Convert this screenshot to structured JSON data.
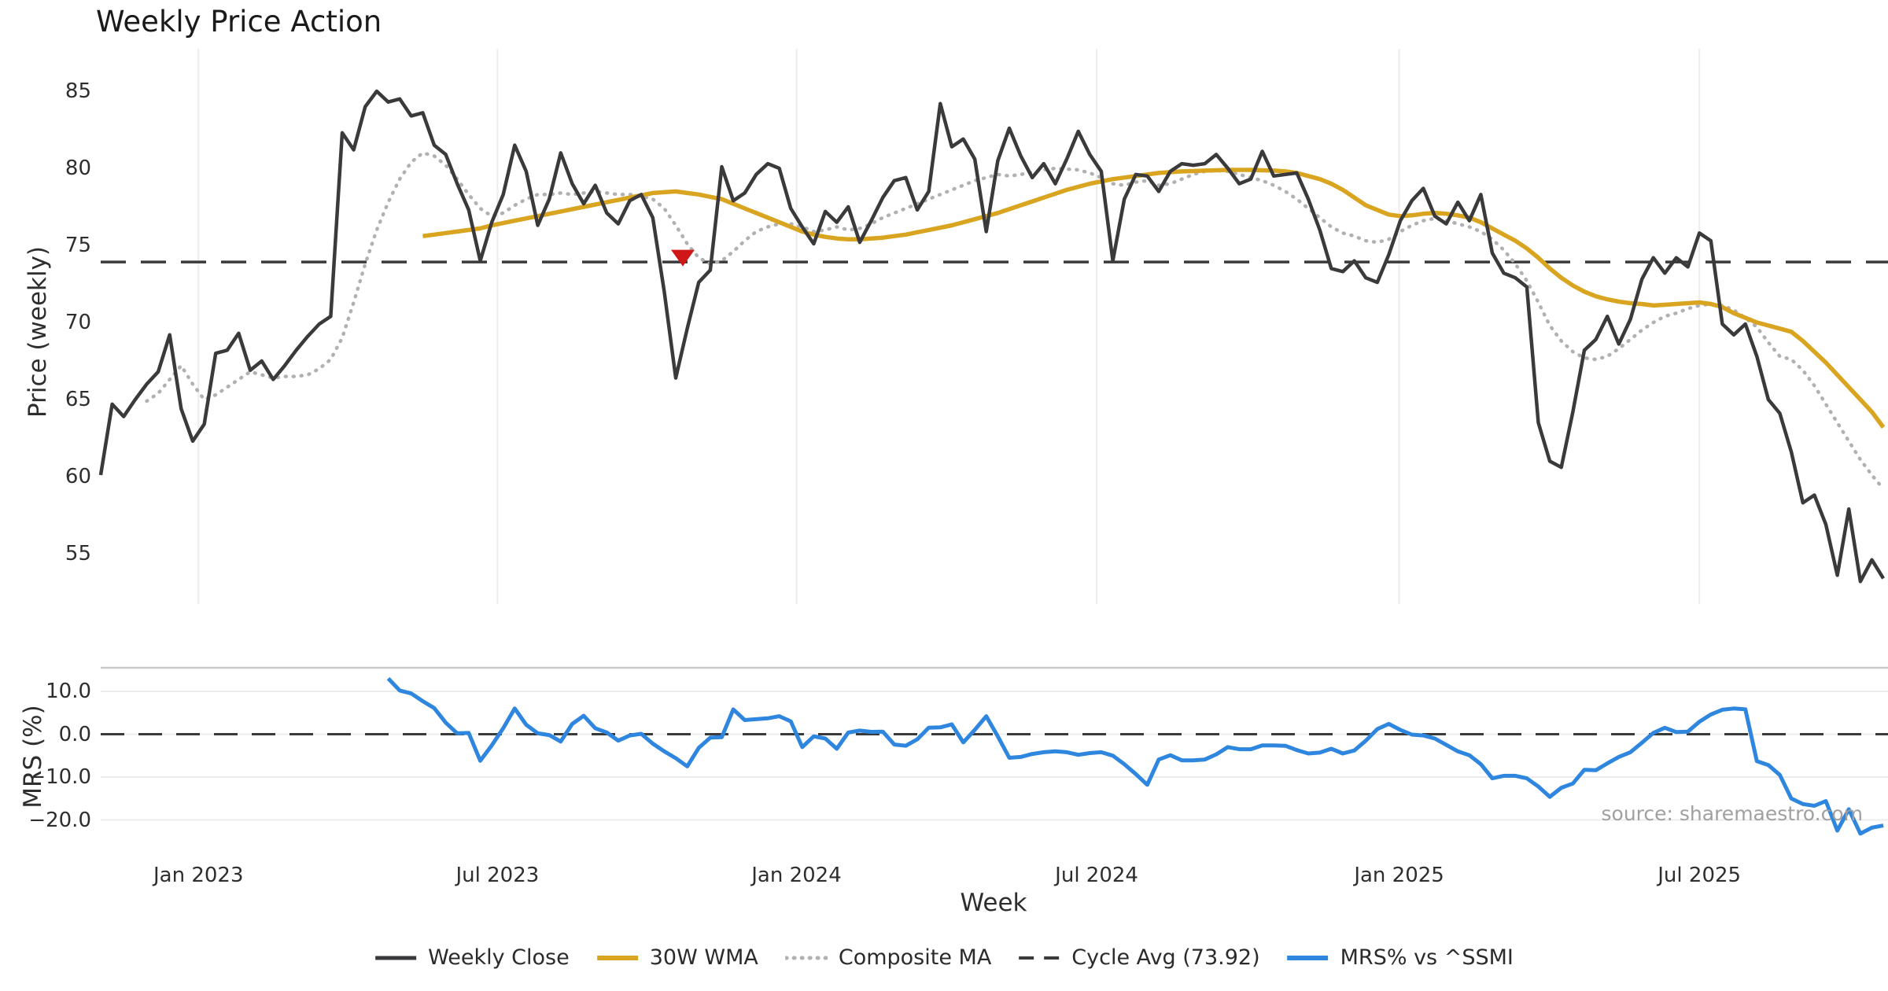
{
  "title": "Weekly Price Action",
  "source_note": "source: sharemaestro.com",
  "axes": {
    "xlabel": "Week",
    "price_ylabel": "Price (weekly)",
    "mrs_ylabel": "MRS (%)"
  },
  "colors": {
    "weekly_close": "#3a3a3c",
    "wma_30w": "#d9a521",
    "composite_ma": "#b1b1b3",
    "cycle_avg": "#3a3a3a",
    "mrs": "#2e86de",
    "marker": "#d01717",
    "grid": "#ececec",
    "spine": "#c9c9c9",
    "text": "#2e2e2e",
    "muted": "#a0a0a0"
  },
  "legend": {
    "items": [
      {
        "id": "weekly-close",
        "label": "Weekly Close",
        "swatch": "solid",
        "color": "#3a3a3c",
        "weight": 5
      },
      {
        "id": "wma-30w",
        "label": "30W WMA",
        "swatch": "solid",
        "color": "#d9a521",
        "weight": 6
      },
      {
        "id": "composite-ma",
        "label": "Composite MA",
        "swatch": "dotted",
        "color": "#b1b1b3",
        "weight": 5
      },
      {
        "id": "cycle-avg",
        "label": "Cycle Avg (73.92)",
        "swatch": "dashes",
        "color": "#3a3a3a",
        "weight": 4
      },
      {
        "id": "mrs",
        "label": "MRS% vs ^SSMI",
        "swatch": "solid",
        "color": "#2e86de",
        "weight": 6
      }
    ]
  },
  "chart_data": [
    {
      "id": "price",
      "type": "line",
      "title": "Weekly Price Action",
      "ylabel": "Price (weekly)",
      "xlabel": "Week",
      "ylim": [
        51.7,
        87.8
      ],
      "grid": "vertical-only",
      "yticks": [
        {
          "label": "85",
          "value": 85
        },
        {
          "label": "80",
          "value": 80
        },
        {
          "label": "75",
          "value": 75
        },
        {
          "label": "70",
          "value": 70
        },
        {
          "label": "65",
          "value": 65
        },
        {
          "label": "60",
          "value": 60
        },
        {
          "label": "55",
          "value": 55
        }
      ],
      "xticks": [
        {
          "label": "Jan 2023",
          "week": 8.5
        },
        {
          "label": "Jul 2023",
          "week": 34.5
        },
        {
          "label": "Jan 2024",
          "week": 60.5
        },
        {
          "label": "Jul 2024",
          "week": 86.6
        },
        {
          "label": "Jan 2025",
          "week": 112.9
        },
        {
          "label": "Jul 2025",
          "week": 139.0
        }
      ],
      "reference_line": {
        "name": "Cycle Avg",
        "value": 73.92
      },
      "marker": {
        "type": "triangle-down",
        "week": 50,
        "value": 74.2
      },
      "series": [
        {
          "name": "Weekly Close",
          "key": "weekly_close",
          "start_week": 0,
          "values": [
            60.1,
            64.7,
            63.9,
            65.0,
            66.0,
            66.8,
            69.2,
            64.4,
            62.3,
            63.4,
            68.0,
            68.2,
            69.3,
            66.9,
            67.5,
            66.3,
            67.2,
            68.2,
            69.1,
            69.9,
            70.4,
            82.3,
            81.2,
            84.0,
            85.0,
            84.3,
            84.5,
            83.4,
            83.6,
            81.5,
            80.9,
            79.0,
            77.3,
            74.0,
            76.5,
            78.3,
            81.5,
            79.8,
            76.3,
            78.0,
            81.0,
            79.0,
            77.7,
            78.9,
            77.1,
            76.4,
            77.9,
            78.3,
            76.8,
            72.0,
            66.4,
            69.6,
            72.6,
            73.4,
            80.1,
            77.9,
            78.4,
            79.6,
            80.3,
            80.0,
            77.4,
            76.2,
            75.1,
            77.2,
            76.5,
            77.5,
            75.2,
            76.6,
            78.1,
            79.2,
            79.4,
            77.3,
            78.5,
            84.2,
            81.4,
            81.9,
            80.6,
            75.9,
            80.5,
            82.6,
            80.8,
            79.4,
            80.3,
            79.0,
            80.6,
            82.4,
            80.9,
            79.8,
            74.0,
            78.0,
            79.6,
            79.5,
            78.5,
            79.8,
            80.3,
            80.2,
            80.3,
            80.9,
            80.0,
            79.0,
            79.3,
            81.1,
            79.5,
            79.6,
            79.7,
            78.0,
            76.0,
            73.5,
            73.3,
            74.0,
            72.9,
            72.6,
            74.4,
            76.6,
            77.9,
            78.7,
            76.9,
            76.4,
            77.8,
            76.6,
            78.3,
            74.5,
            73.2,
            72.9,
            72.3,
            63.5,
            61.0,
            60.6,
            64.2,
            68.2,
            68.9,
            70.4,
            68.6,
            70.2,
            72.8,
            74.2,
            73.2,
            74.2,
            73.6,
            75.8,
            75.3,
            69.9,
            69.2,
            69.9,
            67.8,
            65.0,
            64.1,
            61.6,
            58.3,
            58.8,
            56.9,
            53.6,
            57.9,
            53.2,
            54.6,
            53.4
          ]
        },
        {
          "name": "30W WMA",
          "key": "wma_30w",
          "start_week": 28,
          "values": [
            75.6,
            75.7,
            75.8,
            75.9,
            76.0,
            76.1,
            76.3,
            76.45,
            76.6,
            76.75,
            76.9,
            77.05,
            77.2,
            77.35,
            77.5,
            77.65,
            77.8,
            77.95,
            78.1,
            78.25,
            78.4,
            78.45,
            78.5,
            78.4,
            78.3,
            78.15,
            78.0,
            77.7,
            77.4,
            77.1,
            76.8,
            76.5,
            76.2,
            75.9,
            75.7,
            75.55,
            75.45,
            75.4,
            75.4,
            75.45,
            75.5,
            75.6,
            75.7,
            75.85,
            76.0,
            76.15,
            76.3,
            76.5,
            76.7,
            76.9,
            77.1,
            77.35,
            77.6,
            77.85,
            78.1,
            78.35,
            78.6,
            78.8,
            79.0,
            79.15,
            79.3,
            79.4,
            79.5,
            79.6,
            79.7,
            79.75,
            79.8,
            79.82,
            79.85,
            79.87,
            79.9,
            79.9,
            79.9,
            79.87,
            79.85,
            79.8,
            79.7,
            79.5,
            79.3,
            79.0,
            78.6,
            78.1,
            77.6,
            77.3,
            77.0,
            76.9,
            76.95,
            77.05,
            77.1,
            77.05,
            76.95,
            76.8,
            76.5,
            76.1,
            75.7,
            75.3,
            74.8,
            74.2,
            73.5,
            72.9,
            72.4,
            72.0,
            71.7,
            71.5,
            71.35,
            71.25,
            71.2,
            71.1,
            71.15,
            71.2,
            71.25,
            71.3,
            71.2,
            71.0,
            70.6,
            70.3,
            70.0,
            69.8,
            69.6,
            69.4,
            68.8,
            68.1,
            67.4,
            66.6,
            65.8,
            65.0,
            64.2,
            63.2
          ]
        },
        {
          "name": "Composite MA",
          "key": "composite_ma",
          "start_week": 4,
          "values": [
            64.9,
            65.4,
            66.3,
            67.2,
            66.0,
            65.0,
            65.3,
            65.8,
            66.3,
            66.8,
            66.6,
            66.4,
            66.5,
            66.5,
            66.6,
            67.0,
            67.6,
            69.0,
            71.3,
            73.8,
            76.0,
            77.8,
            79.3,
            80.4,
            81.0,
            80.8,
            80.2,
            79.3,
            78.3,
            77.4,
            76.9,
            77.1,
            77.6,
            78.0,
            78.3,
            78.3,
            78.4,
            78.3,
            78.4,
            78.5,
            78.4,
            78.3,
            78.3,
            78.2,
            78.0,
            77.4,
            76.3,
            75.1,
            74.2,
            73.8,
            74.0,
            74.6,
            75.3,
            75.9,
            76.2,
            76.4,
            76.4,
            76.2,
            75.9,
            76.0,
            76.2,
            76.0,
            76.1,
            76.4,
            76.8,
            77.1,
            77.4,
            77.7,
            78.0,
            78.3,
            78.6,
            78.9,
            79.2,
            79.4,
            79.6,
            79.5,
            79.6,
            79.75,
            79.9,
            80.0,
            79.95,
            79.9,
            79.7,
            79.4,
            79.0,
            78.9,
            79.1,
            79.2,
            78.9,
            79.0,
            79.3,
            79.6,
            79.8,
            79.85,
            79.8,
            79.6,
            79.4,
            79.2,
            78.9,
            78.5,
            78.0,
            77.4,
            76.8,
            76.2,
            75.8,
            75.6,
            75.3,
            75.2,
            75.4,
            75.9,
            76.3,
            76.6,
            76.75,
            76.6,
            76.4,
            76.2,
            75.9,
            75.4,
            74.7,
            73.8,
            72.7,
            71.3,
            69.8,
            68.8,
            68.1,
            67.7,
            67.6,
            67.8,
            68.3,
            68.9,
            69.5,
            70.0,
            70.4,
            70.6,
            70.9,
            71.1,
            71.2,
            71.1,
            70.8,
            70.3,
            69.7,
            68.7,
            67.8,
            67.6,
            66.9,
            65.9,
            64.7,
            63.5,
            62.3,
            61.1,
            60.1,
            59.2
          ]
        }
      ]
    },
    {
      "id": "mrs",
      "type": "line",
      "ylabel": "MRS (%)",
      "ylim": [
        -26.0,
        15.5
      ],
      "grid": "horizontal-only",
      "yticks": [
        {
          "label": "10.0",
          "value": 10
        },
        {
          "label": "0.0",
          "value": 0
        },
        {
          "label": "−10.0",
          "value": -10
        },
        {
          "label": "−20.0",
          "value": -20
        }
      ],
      "reference_line": {
        "name": "Zero",
        "value": 0
      },
      "series": [
        {
          "name": "MRS% vs ^SSMI",
          "key": "mrs",
          "start_week": 25,
          "values": [
            13.0,
            10.2,
            9.5,
            7.7,
            6.1,
            2.7,
            0.2,
            0.3,
            -6.2,
            -2.6,
            1.4,
            6.0,
            2.2,
            0.2,
            -0.2,
            -1.7,
            2.4,
            4.3,
            1.4,
            0.4,
            -1.5,
            -0.3,
            0.1,
            -2.2,
            -4.0,
            -5.6,
            -7.5,
            -3.2,
            -0.8,
            -0.7,
            5.8,
            3.3,
            3.5,
            3.7,
            4.2,
            3.0,
            -3.0,
            -0.5,
            -1.0,
            -3.4,
            0.4,
            0.85,
            0.55,
            0.6,
            -2.4,
            -2.7,
            -1.2,
            1.5,
            1.6,
            2.3,
            -1.9,
            1.0,
            4.2,
            -0.5,
            -5.5,
            -5.3,
            -4.6,
            -4.2,
            -4.0,
            -4.2,
            -4.8,
            -4.4,
            -4.2,
            -5.0,
            -7.0,
            -9.3,
            -11.8,
            -5.9,
            -4.9,
            -6.1,
            -6.1,
            -5.9,
            -4.7,
            -3.0,
            -3.5,
            -3.5,
            -2.6,
            -2.6,
            -2.7,
            -3.7,
            -4.5,
            -4.3,
            -3.4,
            -4.5,
            -3.8,
            -1.5,
            1.2,
            2.4,
            1.0,
            -0.1,
            -0.3,
            -1.0,
            -2.5,
            -4.0,
            -4.9,
            -7.0,
            -10.3,
            -9.7,
            -9.7,
            -10.3,
            -12.2,
            -14.6,
            -12.5,
            -11.5,
            -8.3,
            -8.4,
            -6.8,
            -5.3,
            -4.2,
            -2.0,
            0.3,
            1.5,
            0.5,
            0.6,
            2.9,
            4.6,
            5.7,
            6.0,
            5.8,
            -6.3,
            -7.2,
            -9.5,
            -15.0,
            -16.3,
            -16.7,
            -15.6,
            -22.5,
            -17.5,
            -23.2,
            -21.8,
            -21.3
          ]
        }
      ]
    }
  ]
}
